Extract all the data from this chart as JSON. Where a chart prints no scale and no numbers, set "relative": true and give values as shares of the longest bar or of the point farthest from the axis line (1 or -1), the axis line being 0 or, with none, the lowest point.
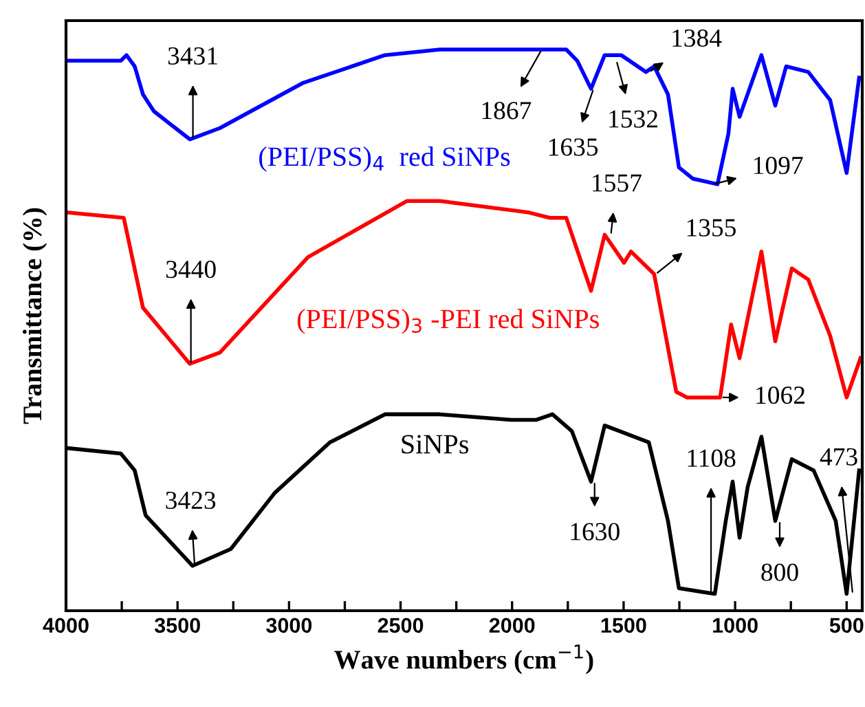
{
  "chart_data": {
    "type": "line",
    "relative": true,
    "xlabel": "Wave numbers (cm$^{−1}$)",
    "ylabel": "Transmittance (%)",
    "xlim": [
      4000,
      430
    ],
    "xticks": [
      4000,
      {
        "value": 3750,
        "label": null
      },
      3500,
      {
        "value": 3250,
        "label": null
      },
      3000,
      {
        "value": 2750,
        "label": null
      },
      2500,
      {
        "value": 2250,
        "label": null
      },
      2000,
      {
        "value": 1750,
        "label": null
      },
      1500,
      {
        "value": 1250,
        "label": null
      },
      1000,
      {
        "value": 750,
        "label": null
      },
      500
    ],
    "grid": false,
    "legend": false,
    "line_style": "solid",
    "marker": "none",
    "series": [
      {
        "name": "(PEI/PSS)$_{4}$  red SiNPs",
        "color": "#0000ff",
        "x": [
          4000,
          3754,
          3729,
          3692,
          3655,
          3606,
          3445,
          3310,
          2940,
          2570,
          2324,
          1880,
          1757,
          1708,
          1646,
          1585,
          1511,
          1400,
          1363,
          1301,
          1252,
          1190,
          1079,
          1030,
          1011,
          980,
          882,
          820,
          771,
          672,
          574,
          500,
          444
        ],
        "values": [
          0.98,
          0.98,
          0.99,
          0.97,
          0.92,
          0.89,
          0.84,
          0.86,
          0.94,
          0.99,
          1,
          1,
          1,
          0.98,
          0.93,
          0.99,
          0.99,
          0.96,
          0.97,
          0.92,
          0.79,
          0.77,
          0.76,
          0.85,
          0.93,
          0.88,
          0.99,
          0.9,
          0.97,
          0.96,
          0.91,
          0.78,
          0.95
        ]
      },
      {
        "name": "(PEI/PSS)$_{3}$ -PEI red SiNPs",
        "color": "#ff0000",
        "x": [
          4000,
          3741,
          3655,
          3445,
          3310,
          2915,
          2472,
          2324,
          1930,
          1831,
          1757,
          1646,
          1585,
          1498,
          1467,
          1363,
          1264,
          1215,
          1067,
          1018,
          980,
          882,
          820,
          746,
          672,
          574,
          500,
          438
        ],
        "values": [
          0.71,
          0.7,
          0.54,
          0.44,
          0.46,
          0.63,
          0.73,
          0.73,
          0.71,
          0.7,
          0.7,
          0.57,
          0.67,
          0.62,
          0.64,
          0.6,
          0.39,
          0.38,
          0.38,
          0.51,
          0.45,
          0.64,
          0.48,
          0.61,
          0.59,
          0.49,
          0.38,
          0.45
        ]
      },
      {
        "name": "SiNPs",
        "color": "#000000",
        "x": [
          4000,
          3754,
          3692,
          3643,
          3433,
          3261,
          3064,
          2817,
          2570,
          2324,
          2004,
          1893,
          1819,
          1732,
          1646,
          1585,
          1387,
          1301,
          1252,
          1091,
          1042,
          1011,
          980,
          944,
          882,
          820,
          746,
          648,
          549,
          500,
          444
        ],
        "values": [
          0.29,
          0.28,
          0.25,
          0.17,
          0.08,
          0.11,
          0.21,
          0.3,
          0.35,
          0.35,
          0.34,
          0.34,
          0.35,
          0.32,
          0.23,
          0.33,
          0.3,
          0.16,
          0.04,
          0.03,
          0.16,
          0.23,
          0.13,
          0.22,
          0.31,
          0.16,
          0.27,
          0.25,
          0.16,
          0.03,
          0.25
        ]
      }
    ],
    "annotations": [
      {
        "text": "3431",
        "x": 3431,
        "y": 0.84
      },
      {
        "text": "1867",
        "x": 1867,
        "y": 1
      },
      {
        "text": "1635",
        "x": 1635,
        "y": 0.93
      },
      {
        "text": "1532",
        "x": 1532,
        "y": 0.98
      },
      {
        "text": "1384",
        "x": 1384,
        "y": 0.96
      },
      {
        "text": "1097",
        "x": 1097,
        "y": 0.76
      },
      {
        "text": "1557",
        "x": 1557,
        "y": 0.67
      },
      {
        "text": "1355",
        "x": 1355,
        "y": 0.6
      },
      {
        "text": "3440",
        "x": 3440,
        "y": 0.44
      },
      {
        "text": "1062",
        "x": 1062,
        "y": 0.38
      },
      {
        "text": "3423",
        "x": 3423,
        "y": 0.08
      },
      {
        "text": "1630",
        "x": 1630,
        "y": 0.23
      },
      {
        "text": "1108",
        "x": 1108,
        "y": 0.03
      },
      {
        "text": "800",
        "x": 800,
        "y": 0.16
      },
      {
        "text": "473",
        "x": 473,
        "y": 0.03
      }
    ]
  }
}
